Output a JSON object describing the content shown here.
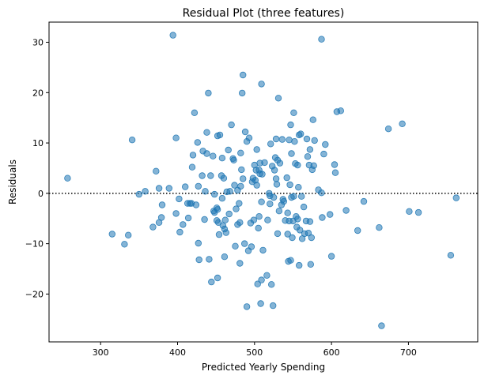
{
  "chart_data": {
    "type": "scatter",
    "title": "Residual Plot (three features)",
    "xlabel": "Predicted Yearly Spending",
    "ylabel": "Residuals",
    "xlim": [
      233,
      790
    ],
    "ylim": [
      -29.5,
      34.0
    ],
    "xticks": [
      300,
      400,
      500,
      600,
      700
    ],
    "yticks": [
      -20,
      -10,
      0,
      10,
      20,
      30
    ],
    "reference_line": {
      "y": 0,
      "style": "dotted",
      "color": "#000000"
    },
    "grid": false,
    "marker_color": "#1f77b4",
    "series": [
      {
        "points": [
          [
            257,
            3.0
          ],
          [
            315,
            -8.1
          ],
          [
            331,
            -10.1
          ],
          [
            336,
            -8.3
          ],
          [
            341,
            10.6
          ],
          [
            350,
            -0.2
          ],
          [
            358,
            0.4
          ],
          [
            368,
            -6.7
          ],
          [
            372,
            4.4
          ],
          [
            376,
            1.0
          ],
          [
            376,
            -5.8
          ],
          [
            379,
            -4.8
          ],
          [
            380,
            -2.3
          ],
          [
            389,
            1.0
          ],
          [
            394,
            31.4
          ],
          [
            398,
            11.0
          ],
          [
            398,
            -4.0
          ],
          [
            402,
            -1.1
          ],
          [
            403,
            -7.7
          ],
          [
            407,
            -6.2
          ],
          [
            410,
            1.3
          ],
          [
            413,
            -2.0
          ],
          [
            414,
            -4.9
          ],
          [
            416,
            -2.0
          ],
          [
            418,
            -2.0
          ],
          [
            419,
            5.2
          ],
          [
            420,
            7.6
          ],
          [
            422,
            16.0
          ],
          [
            424,
            -2.3
          ],
          [
            426,
            10.1
          ],
          [
            427,
            1.4
          ],
          [
            427,
            -9.9
          ],
          [
            428,
            -13.2
          ],
          [
            432,
            3.5
          ],
          [
            433,
            8.4
          ],
          [
            435,
            -5.2
          ],
          [
            436,
            0.4
          ],
          [
            438,
            7.9
          ],
          [
            438,
            12.1
          ],
          [
            440,
            19.9
          ],
          [
            441,
            -13.1
          ],
          [
            443,
            3.5
          ],
          [
            444,
            -17.6
          ],
          [
            446,
            7.4
          ],
          [
            447,
            -3.5
          ],
          [
            448,
            -0.2
          ],
          [
            448,
            -3.8
          ],
          [
            451,
            -2.9
          ],
          [
            451,
            -5.4
          ],
          [
            452,
            -16.8
          ],
          [
            452,
            -3.2
          ],
          [
            452,
            11.4
          ],
          [
            453,
            -5.8
          ],
          [
            454,
            -8.2
          ],
          [
            455,
            11.6
          ],
          [
            457,
            3.5
          ],
          [
            458,
            7.0
          ],
          [
            458,
            -1.0
          ],
          [
            459,
            -6.4
          ],
          [
            460,
            3.0
          ],
          [
            461,
            -7.1
          ],
          [
            461,
            -12.6
          ],
          [
            462,
            -5.3
          ],
          [
            463,
            -7.8
          ],
          [
            464,
            0.3
          ],
          [
            466,
            8.6
          ],
          [
            467,
            -4.1
          ],
          [
            468,
            0.4
          ],
          [
            470,
            13.6
          ],
          [
            472,
            6.9
          ],
          [
            473,
            6.6
          ],
          [
            474,
            1.6
          ],
          [
            475,
            -10.5
          ],
          [
            476,
            -3.1
          ],
          [
            478,
            -6.2
          ],
          [
            478,
            0.6
          ],
          [
            480,
            -2.0
          ],
          [
            481,
            -5.8
          ],
          [
            481,
            -13.9
          ],
          [
            482,
            8.0
          ],
          [
            482,
            1.4
          ],
          [
            483,
            4.7
          ],
          [
            484,
            19.9
          ],
          [
            485,
            2.9
          ],
          [
            485,
            23.5
          ],
          [
            487,
            -10.0
          ],
          [
            488,
            12.2
          ],
          [
            490,
            -22.5
          ],
          [
            490,
            10.3
          ],
          [
            492,
            -11.4
          ],
          [
            493,
            11.0
          ],
          [
            495,
            -5.9
          ],
          [
            496,
            -10.6
          ],
          [
            497,
            2.3
          ],
          [
            498,
            3.0
          ],
          [
            499,
            -5.3
          ],
          [
            500,
            5.6
          ],
          [
            501,
            2.6
          ],
          [
            502,
            4.6
          ],
          [
            503,
            1.6
          ],
          [
            503,
            8.7
          ],
          [
            504,
            -18.0
          ],
          [
            505,
            -6.9
          ],
          [
            506,
            4.6
          ],
          [
            506,
            -4.6
          ],
          [
            507,
            3.9
          ],
          [
            507,
            6.0
          ],
          [
            508,
            -21.9
          ],
          [
            509,
            -1.7
          ],
          [
            509,
            -17.2
          ],
          [
            509,
            21.7
          ],
          [
            510,
            3.8
          ],
          [
            511,
            -11.3
          ],
          [
            513,
            6.1
          ],
          [
            516,
            -16.3
          ],
          [
            517,
            -5.3
          ],
          [
            519,
            0.0
          ],
          [
            520,
            -0.5
          ],
          [
            520,
            -2.1
          ],
          [
            521,
            9.8
          ],
          [
            522,
            -18.1
          ],
          [
            523,
            5.4
          ],
          [
            524,
            -22.3
          ],
          [
            525,
            -0.8
          ],
          [
            526,
            4.6
          ],
          [
            527,
            7.1
          ],
          [
            528,
            2.9
          ],
          [
            528,
            10.8
          ],
          [
            529,
            1.8
          ],
          [
            530,
            6.6
          ],
          [
            530,
            -8.0
          ],
          [
            531,
            18.9
          ],
          [
            532,
            -3.5
          ],
          [
            533,
            6.0
          ],
          [
            535,
            -2.3
          ],
          [
            536,
            10.7
          ],
          [
            537,
            -1.2
          ],
          [
            538,
            -1.6
          ],
          [
            540,
            -5.4
          ],
          [
            542,
            3.1
          ],
          [
            543,
            -3.9
          ],
          [
            543,
            -8.1
          ],
          [
            544,
            -13.5
          ],
          [
            545,
            10.6
          ],
          [
            545,
            -5.5
          ],
          [
            546,
            1.7
          ],
          [
            547,
            13.6
          ],
          [
            547,
            -13.3
          ],
          [
            548,
            7.9
          ],
          [
            548,
            -0.8
          ],
          [
            549,
            -8.8
          ],
          [
            550,
            -5.5
          ],
          [
            551,
            16.0
          ],
          [
            551,
            -0.6
          ],
          [
            552,
            10.3
          ],
          [
            553,
            5.9
          ],
          [
            554,
            -4.6
          ],
          [
            555,
            -6.7
          ],
          [
            556,
            5.6
          ],
          [
            556,
            -5.1
          ],
          [
            557,
            1.2
          ],
          [
            558,
            11.6
          ],
          [
            558,
            -14.3
          ],
          [
            559,
            -7.3
          ],
          [
            560,
            11.8
          ],
          [
            561,
            -0.6
          ],
          [
            562,
            -9.0
          ],
          [
            564,
            -2.7
          ],
          [
            565,
            -8.0
          ],
          [
            567,
            -5.5
          ],
          [
            568,
            10.8
          ],
          [
            569,
            7.3
          ],
          [
            570,
            -7.9
          ],
          [
            571,
            5.6
          ],
          [
            572,
            8.7
          ],
          [
            572,
            -5.6
          ],
          [
            573,
            -14.1
          ],
          [
            574,
            -8.8
          ],
          [
            575,
            4.7
          ],
          [
            576,
            14.6
          ],
          [
            577,
            5.5
          ],
          [
            578,
            10.5
          ],
          [
            583,
            0.7
          ],
          [
            587,
            30.6
          ],
          [
            587,
            0.1
          ],
          [
            588,
            -4.8
          ],
          [
            590,
            7.8
          ],
          [
            592,
            9.7
          ],
          [
            598,
            -4.2
          ],
          [
            600,
            -12.5
          ],
          [
            604,
            5.7
          ],
          [
            605,
            4.1
          ],
          [
            607,
            16.2
          ],
          [
            612,
            16.4
          ],
          [
            619,
            -3.4
          ],
          [
            634,
            -7.4
          ],
          [
            642,
            -1.6
          ],
          [
            662,
            -6.8
          ],
          [
            665,
            -26.3
          ],
          [
            674,
            12.8
          ],
          [
            692,
            13.8
          ],
          [
            701,
            -3.6
          ],
          [
            713,
            -3.8
          ],
          [
            755,
            -12.3
          ],
          [
            762,
            -0.9
          ]
        ]
      }
    ]
  }
}
